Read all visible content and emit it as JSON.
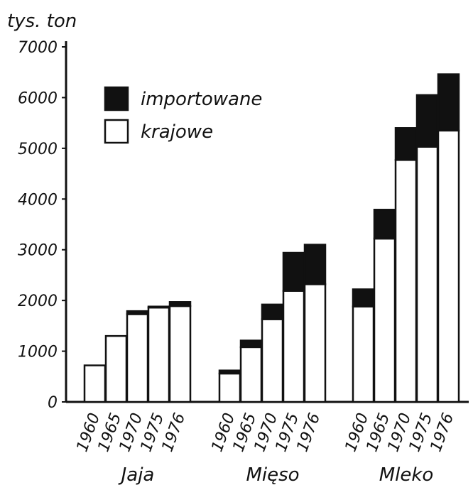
{
  "chart_data": {
    "type": "bar",
    "stacked": true,
    "ylabel": "tys. ton",
    "ylim": [
      0,
      7000
    ],
    "yticks": [
      "0",
      "1000",
      "2000",
      "3000",
      "4000",
      "5000",
      "6000",
      "7000"
    ],
    "years": [
      "1960",
      "1965",
      "1970",
      "1975",
      "1976"
    ],
    "groups": [
      {
        "name": "Jaja",
        "krajowe": [
          720,
          1300,
          1730,
          1860,
          1890
        ],
        "importowane": [
          0,
          0,
          60,
          20,
          80
        ]
      },
      {
        "name": "Mięso",
        "krajowe": [
          560,
          1080,
          1630,
          2190,
          2320
        ],
        "importowane": [
          60,
          130,
          290,
          750,
          780
        ]
      },
      {
        "name": "Mleko",
        "krajowe": [
          1880,
          3220,
          4770,
          5030,
          5350
        ],
        "importowane": [
          340,
          570,
          630,
          1020,
          1110
        ]
      }
    ],
    "legend": {
      "position": "top-left",
      "items": [
        {
          "key": "importowane",
          "label": "importowane",
          "color": "#111111"
        },
        {
          "key": "krajowe",
          "label": "krajowe",
          "color": "#ffffff"
        }
      ]
    },
    "grid": false
  }
}
